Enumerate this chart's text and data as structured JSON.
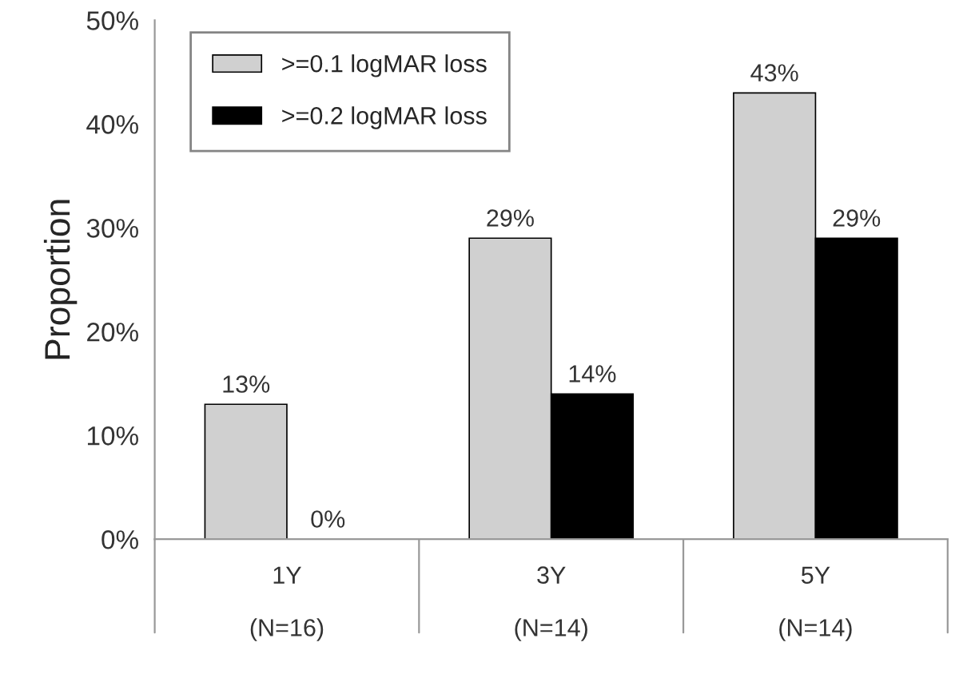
{
  "chart_data": {
    "type": "bar",
    "ylabel": "Proportion",
    "categories": [
      "1Y\n\n(N=16)",
      "3Y\n\n(N=14)",
      "5Y\n\n(N=14)"
    ],
    "series": [
      {
        "name": ">=0.1 logMAR loss",
        "color": "#d0d0d0",
        "values": [
          13,
          29,
          43
        ],
        "value_labels": [
          "13%",
          "29%",
          "43%"
        ]
      },
      {
        "name": ">=0.2 logMAR loss",
        "color": "#000000",
        "values": [
          0,
          14,
          29
        ],
        "value_labels": [
          "0%",
          "14%",
          "29%"
        ]
      }
    ],
    "ylim": [
      0,
      50
    ],
    "yticks": [
      {
        "value": 0,
        "label": "0%"
      },
      {
        "value": 10,
        "label": "10%"
      },
      {
        "value": 20,
        "label": "20%"
      },
      {
        "value": 30,
        "label": "30%"
      },
      {
        "value": 40,
        "label": "40%"
      },
      {
        "value": 50,
        "label": "50%"
      }
    ],
    "grid": false,
    "legend": "top left"
  }
}
